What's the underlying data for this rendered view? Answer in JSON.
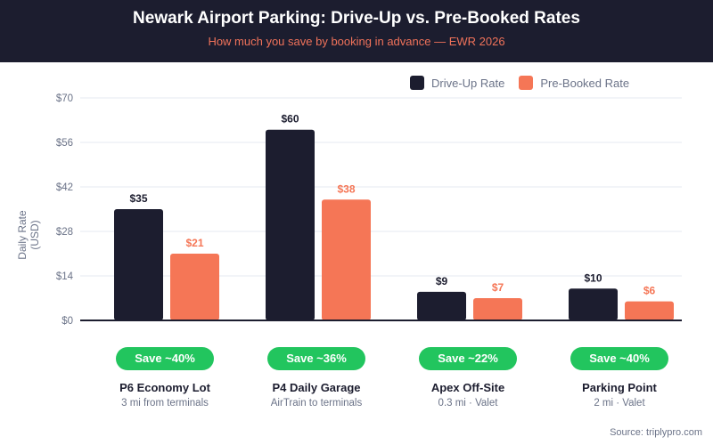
{
  "header": {
    "title": "Newark Airport Parking: Drive-Up vs. Pre-Booked Rates",
    "subtitle": "How much you save by booking in advance — EWR 2026"
  },
  "colors": {
    "drive_up": "#1c1d2f",
    "pre_booked": "#f57656",
    "badge": "#22c55e",
    "grid": "#eef1f6"
  },
  "chart_data": {
    "type": "bar",
    "title": "Newark Airport Parking: Drive-Up vs. Pre-Booked Rates",
    "subtitle": "How much you save by booking in advance — EWR 2026",
    "xlabel": "",
    "ylabel": "Daily Rate (USD)",
    "ylim": [
      0,
      70
    ],
    "yticks": [
      0,
      14,
      28,
      42,
      56,
      70
    ],
    "ytick_labels": [
      "$0",
      "$14",
      "$28",
      "$42",
      "$56",
      "$70"
    ],
    "grid": true,
    "legend_position": "top-right",
    "categories": [
      "P6 Economy Lot",
      "P4 Daily Garage",
      "Apex Off-Site",
      "Parking Point"
    ],
    "category_subtitles": [
      "3 mi from terminals",
      "AirTrain to terminals",
      "0.3 mi · Valet",
      "2 mi · Valet"
    ],
    "savings_badges": [
      "Save ~40%",
      "Save ~36%",
      "Save ~22%",
      "Save ~40%"
    ],
    "series": [
      {
        "name": "Drive-Up Rate",
        "values": [
          35,
          60,
          9,
          10
        ],
        "labels": [
          "$35",
          "$60",
          "$9",
          "$10"
        ]
      },
      {
        "name": "Pre-Booked Rate",
        "values": [
          21,
          38,
          7,
          6
        ],
        "labels": [
          "$21",
          "$38",
          "$7",
          "$6"
        ]
      }
    ]
  },
  "legend": {
    "items": [
      "Drive-Up Rate",
      "Pre-Booked Rate"
    ]
  },
  "source": "Source: triplypro.com"
}
